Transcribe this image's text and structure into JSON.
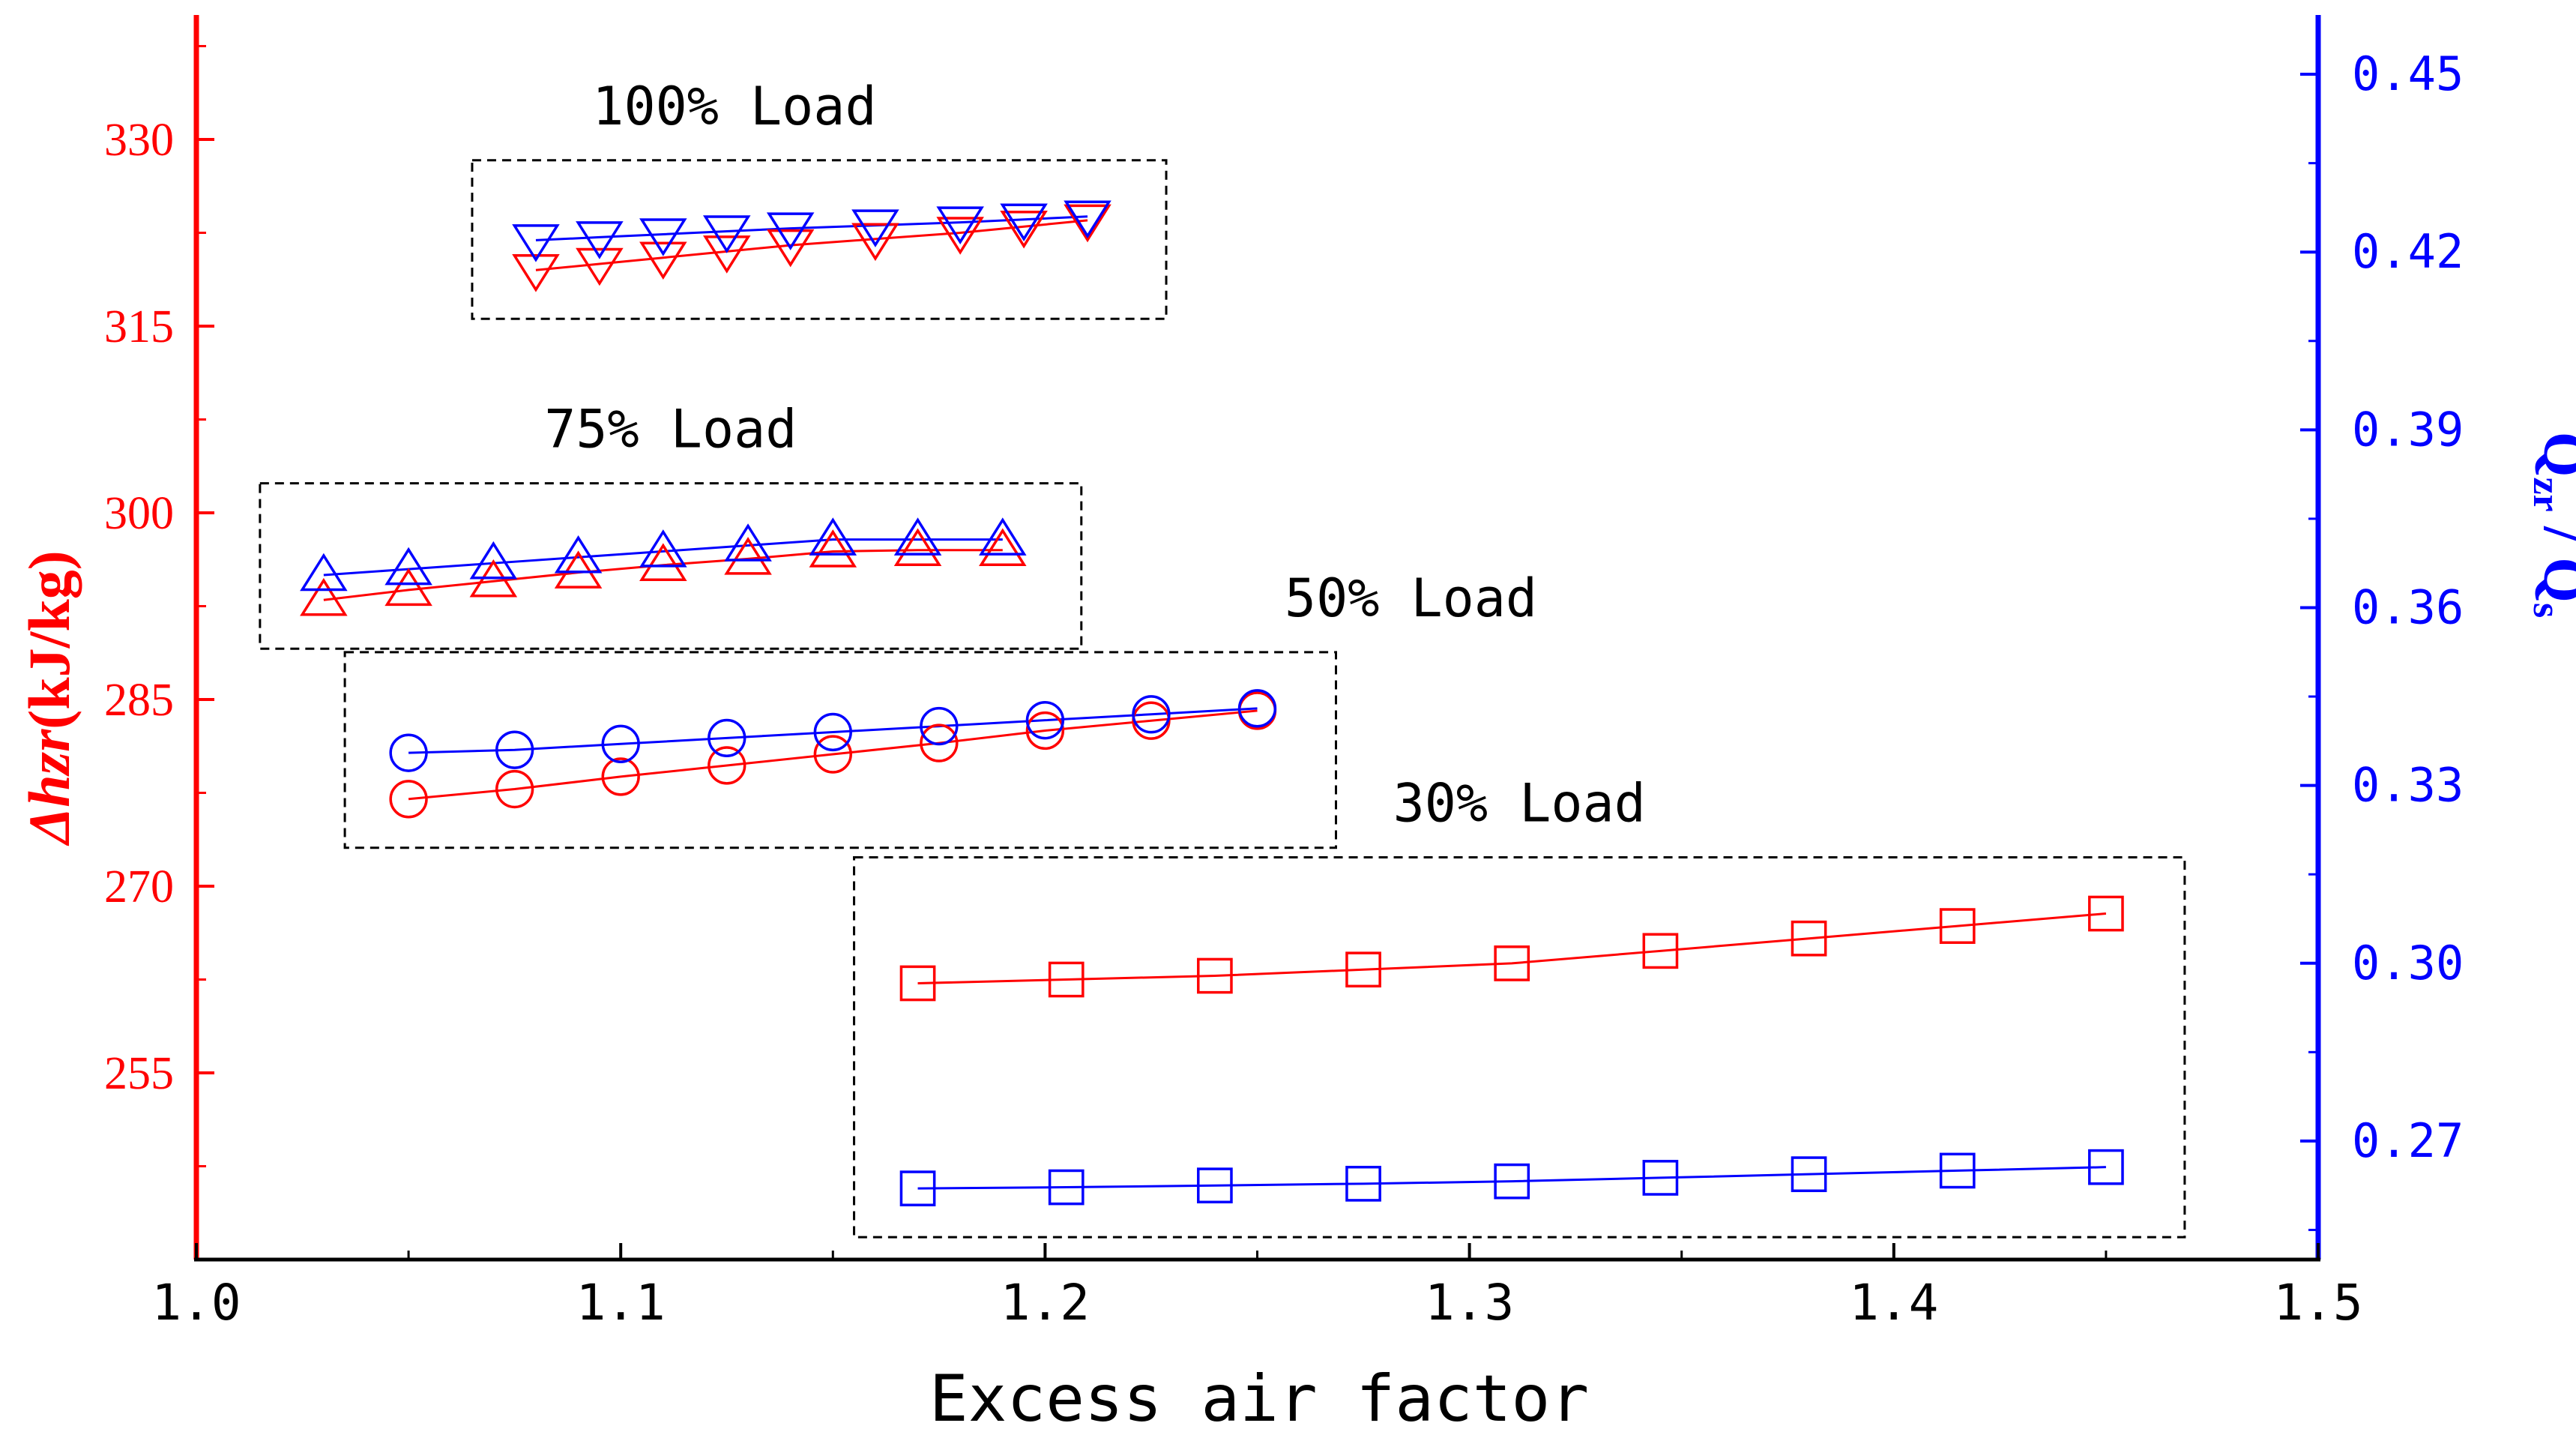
{
  "chart_data": {
    "type": "scatter",
    "xlabel": "Excess air factor",
    "ylabel_left_italic": "Δhzr",
    "ylabel_left_unit": "(kJ/kg)",
    "ylabel_right": {
      "q1": "Q",
      "q1_sub": "zr",
      "slash": " / ",
      "q2": "Q",
      "q2_sub": "s"
    },
    "xlim": [
      1.0,
      1.5
    ],
    "ylim_left": [
      240,
      340
    ],
    "ylim_right": [
      0.25,
      0.46
    ],
    "x_ticks": [
      "1.0",
      "1.1",
      "1.2",
      "1.3",
      "1.4",
      "1.5"
    ],
    "y_left_ticks": [
      "255",
      "270",
      "285",
      "300",
      "315",
      "330"
    ],
    "y_right_ticks": [
      "0.27",
      "0.30",
      "0.33",
      "0.36",
      "0.39",
      "0.42",
      "0.45"
    ],
    "colors": {
      "left": "#ff0000",
      "right": "#0000ff",
      "text": "#000000"
    },
    "groups": [
      {
        "label": "100% Load",
        "marker": "triangle-down",
        "x": [
          1.08,
          1.095,
          1.11,
          1.125,
          1.14,
          1.16,
          1.18,
          1.195,
          1.21
        ],
        "dh": [
          319.5,
          320.0,
          320.5,
          321.0,
          321.5,
          322.0,
          322.5,
          323.0,
          323.5
        ],
        "q": [
          0.422,
          0.4225,
          0.423,
          0.4235,
          0.424,
          0.4245,
          0.425,
          0.4255,
          0.426
        ]
      },
      {
        "label": "75% Load",
        "marker": "triangle-up",
        "x": [
          1.03,
          1.05,
          1.07,
          1.09,
          1.11,
          1.13,
          1.15,
          1.17,
          1.19
        ],
        "dh": [
          293.0,
          293.8,
          294.5,
          295.2,
          295.8,
          296.3,
          296.9,
          297.0,
          297.0
        ],
        "q": [
          0.3655,
          0.3665,
          0.3675,
          0.3685,
          0.3695,
          0.3705,
          0.3715,
          0.3715,
          0.3715
        ]
      },
      {
        "label": "50% Load",
        "marker": "circle",
        "x": [
          1.05,
          1.075,
          1.1,
          1.125,
          1.15,
          1.175,
          1.2,
          1.225,
          1.25
        ],
        "dh": [
          277.0,
          277.8,
          278.8,
          279.7,
          280.6,
          281.5,
          282.5,
          283.3,
          284.1
        ],
        "q": [
          0.3355,
          0.336,
          0.337,
          0.338,
          0.339,
          0.34,
          0.341,
          0.342,
          0.343
        ]
      },
      {
        "label": "30% Load",
        "marker": "square",
        "x": [
          1.17,
          1.205,
          1.24,
          1.275,
          1.31,
          1.345,
          1.38,
          1.415,
          1.45
        ],
        "dh": [
          262.2,
          262.5,
          262.8,
          263.3,
          263.8,
          264.8,
          265.8,
          266.8,
          267.8
        ],
        "q": [
          0.262,
          0.2622,
          0.2625,
          0.2628,
          0.2632,
          0.2638,
          0.2644,
          0.265,
          0.2656
        ]
      }
    ]
  }
}
